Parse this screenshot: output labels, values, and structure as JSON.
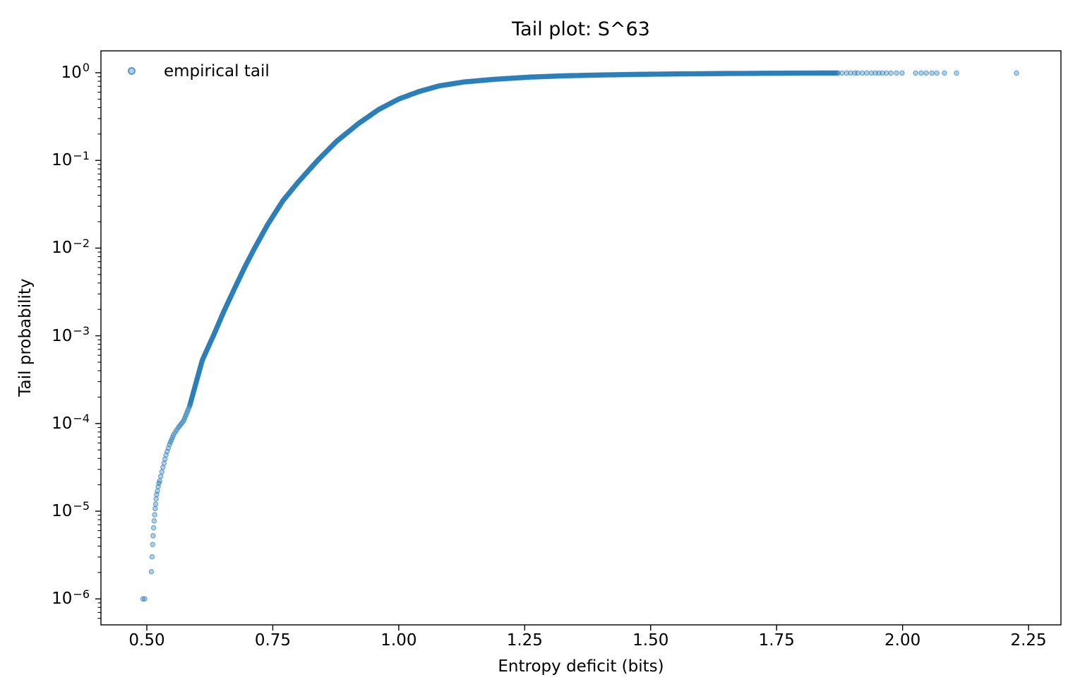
{
  "figure": {
    "background_color": "#ffffff",
    "text_color": "#000000",
    "spine_color": "#000000"
  },
  "chart_data": {
    "type": "scatter",
    "title": "Tail plot: S^63",
    "xlabel": "Entropy deficit (bits)",
    "ylabel": "Tail probability",
    "legend": [
      {
        "label": "empirical tail",
        "marker": "circle",
        "color": "#1f77b4"
      }
    ],
    "legend_position": "upper left",
    "grid": false,
    "x_scale": "linear",
    "y_scale": "log",
    "xlim": [
      0.41,
      2.31
    ],
    "ylim": [
      5e-07,
      1.78
    ],
    "marker": {
      "color": "#1f77b4",
      "alpha": 0.4,
      "radius_px": 3.2
    },
    "x_axis": {
      "ticks": [
        0.5,
        0.75,
        1.0,
        1.25,
        1.5,
        1.75,
        2.0,
        2.25
      ],
      "tick_labels": [
        "0.50",
        "0.75",
        "1.00",
        "1.25",
        "1.50",
        "1.75",
        "2.00",
        "2.25"
      ]
    },
    "y_axis": {
      "tick_base": "10",
      "tick_exponents": [
        0,
        -1,
        -2,
        -3,
        -4,
        -5,
        -6
      ],
      "minor_ticks": "log-decade"
    },
    "series": [
      {
        "name": "empirical tail",
        "point_format": "[entropy_deficit_bits, log10_tail_probability]",
        "low_tail_points": [
          [
            0.492,
            -6.0
          ],
          [
            0.496,
            -6.0
          ],
          [
            0.509,
            -5.69
          ],
          [
            0.5105,
            -5.52
          ],
          [
            0.5115,
            -5.38
          ],
          [
            0.5125,
            -5.28
          ],
          [
            0.5135,
            -5.19
          ],
          [
            0.5145,
            -5.11
          ],
          [
            0.5155,
            -5.04
          ],
          [
            0.5165,
            -4.97
          ],
          [
            0.5175,
            -4.92
          ],
          [
            0.5185,
            -4.86
          ],
          [
            0.5195,
            -4.81
          ],
          [
            0.521,
            -4.77
          ],
          [
            0.5225,
            -4.72
          ],
          [
            0.524,
            -4.68
          ]
        ],
        "curve_anchors": [
          [
            0.5255,
            -4.655
          ],
          [
            0.532,
            -4.5
          ],
          [
            0.538,
            -4.36
          ],
          [
            0.545,
            -4.24
          ],
          [
            0.553,
            -4.13
          ],
          [
            0.562,
            -4.05
          ],
          [
            0.573,
            -3.97
          ],
          [
            0.585,
            -3.8
          ],
          [
            0.597,
            -3.55
          ],
          [
            0.61,
            -3.28
          ],
          [
            0.632,
            -3.0
          ],
          [
            0.653,
            -2.72
          ],
          [
            0.675,
            -2.45
          ],
          [
            0.695,
            -2.21
          ],
          [
            0.714,
            -2.0
          ],
          [
            0.74,
            -1.73
          ],
          [
            0.77,
            -1.46
          ],
          [
            0.8,
            -1.25
          ],
          [
            0.839,
            -1.0
          ],
          [
            0.877,
            -0.78
          ],
          [
            0.92,
            -0.58
          ],
          [
            0.96,
            -0.42
          ],
          [
            1.0,
            -0.3
          ],
          [
            1.04,
            -0.215
          ],
          [
            1.08,
            -0.15
          ],
          [
            1.13,
            -0.105
          ],
          [
            1.19,
            -0.075
          ],
          [
            1.26,
            -0.05
          ],
          [
            1.33,
            -0.035
          ],
          [
            1.4,
            -0.026
          ],
          [
            1.47,
            -0.019
          ],
          [
            1.56,
            -0.013
          ],
          [
            1.65,
            -0.009
          ],
          [
            1.74,
            -0.006
          ],
          [
            1.81,
            -0.004
          ],
          [
            1.872,
            -0.003
          ]
        ],
        "high_tail_log10y": -0.003,
        "high_tail_points_x": [
          1.88,
          1.889,
          1.897,
          1.905,
          1.911,
          1.92,
          1.929,
          1.938,
          1.946,
          1.953,
          1.96,
          1.968,
          1.977,
          1.988,
          1.999,
          2.026,
          2.037,
          2.047,
          2.058,
          2.068,
          2.083,
          2.107,
          2.226
        ]
      }
    ]
  }
}
